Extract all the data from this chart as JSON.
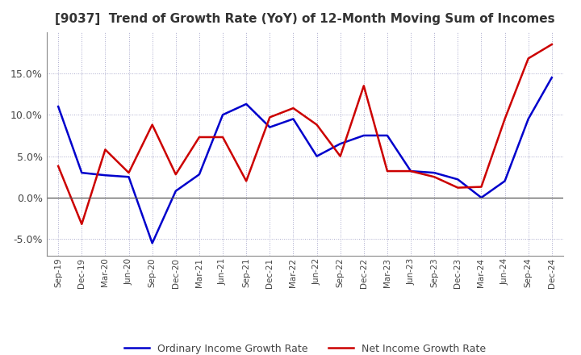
{
  "title": "[9037]  Trend of Growth Rate (YoY) of 12-Month Moving Sum of Incomes",
  "title_fontsize": 11,
  "ylim": [
    -7.0,
    20.0
  ],
  "yticks": [
    -5.0,
    0.0,
    5.0,
    10.0,
    15.0
  ],
  "legend_labels": [
    "Ordinary Income Growth Rate",
    "Net Income Growth Rate"
  ],
  "line_colors": [
    "#0000cc",
    "#cc0000"
  ],
  "x_labels": [
    "Sep-19",
    "Dec-19",
    "Mar-20",
    "Jun-20",
    "Sep-20",
    "Dec-20",
    "Mar-21",
    "Jun-21",
    "Sep-21",
    "Dec-21",
    "Mar-22",
    "Jun-22",
    "Sep-22",
    "Dec-22",
    "Mar-23",
    "Jun-23",
    "Sep-23",
    "Dec-23",
    "Mar-24",
    "Jun-24",
    "Sep-24",
    "Dec-24"
  ],
  "ordinary_income": [
    11.0,
    3.0,
    2.7,
    2.5,
    -5.5,
    0.8,
    2.8,
    10.0,
    11.3,
    8.5,
    9.5,
    5.0,
    6.5,
    7.5,
    7.5,
    3.2,
    3.0,
    2.2,
    0.0,
    2.0,
    9.5,
    14.5
  ],
  "net_income": [
    3.8,
    -3.2,
    5.8,
    3.0,
    8.8,
    2.8,
    7.3,
    7.3,
    2.0,
    9.7,
    10.8,
    8.8,
    5.0,
    13.5,
    3.2,
    3.2,
    2.5,
    1.2,
    1.3,
    9.5,
    16.8,
    18.5
  ],
  "background_color": "#ffffff",
  "grid_color": "#aaaacc",
  "line_width": 1.8
}
